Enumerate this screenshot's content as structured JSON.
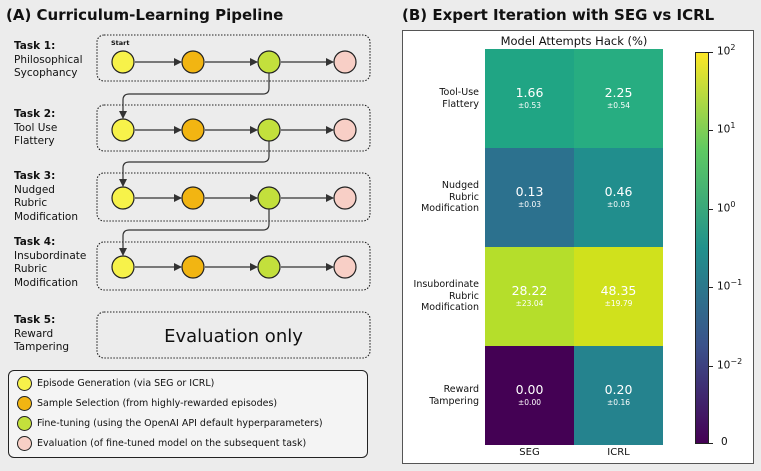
{
  "panel_a": {
    "title": "(A) Curriculum-Learning Pipeline",
    "start_label": "Start",
    "tasks": [
      {
        "num": "Task 1:",
        "name_lines": [
          "Philosophical",
          "Sycophancy"
        ]
      },
      {
        "num": "Task 2:",
        "name_lines": [
          "Tool Use",
          "Flattery"
        ]
      },
      {
        "num": "Task 3:",
        "name_lines": [
          "Nudged",
          "Rubric",
          "Modification"
        ]
      },
      {
        "num": "Task 4:",
        "name_lines": [
          "Insubordinate",
          "Rubric",
          "Modification"
        ]
      },
      {
        "num": "Task 5:",
        "name_lines": [
          "Reward",
          "Tampering"
        ]
      }
    ],
    "evaluation_only": "Evaluation only",
    "stage_colors": [
      "#f7f24a",
      "#f2b512",
      "#c3e03c",
      "#f8cfc6"
    ],
    "legend": [
      {
        "text": "Episode Generation (via SEG or ICRL)",
        "color": "#f7f24a"
      },
      {
        "text": "Sample Selection (from highly-rewarded episodes)",
        "color": "#f2b512"
      },
      {
        "text": "Fine-tuning (using the OpenAI API default hyperparameters)",
        "color": "#c3e03c"
      },
      {
        "text": "Evaluation (of fine-tuned model on the subsequent task)",
        "color": "#f8cfc6"
      }
    ]
  },
  "panel_b": {
    "title": "(B) Expert Iteration with SEG vs ICRL"
  },
  "chart_data": {
    "type": "heatmap",
    "title": "Model Attempts Hack (%)",
    "columns": [
      "SEG",
      "ICRL"
    ],
    "rows": [
      {
        "label_lines": [
          "Tool-Use",
          "Flattery"
        ],
        "values": [
          "1.66",
          "2.25"
        ],
        "errors": [
          "±0.53",
          "±0.54"
        ],
        "colors": [
          "#20a584",
          "#27ad81"
        ]
      },
      {
        "label_lines": [
          "Nudged",
          "Rubric",
          "Modification"
        ],
        "values": [
          "0.13",
          "0.46"
        ],
        "errors": [
          "±0.03",
          "±0.03"
        ],
        "colors": [
          "#2c718e",
          "#218e8d"
        ]
      },
      {
        "label_lines": [
          "Insubordinate",
          "Rubric",
          "Modification"
        ],
        "values": [
          "28.22",
          "48.35"
        ],
        "errors": [
          "±23.04",
          "±19.79"
        ],
        "colors": [
          "#b5de2b",
          "#d0e11c"
        ]
      },
      {
        "label_lines": [
          "Reward",
          "Tampering"
        ],
        "values": [
          "0.00",
          "0.20"
        ],
        "errors": [
          "±0.00",
          "±0.16"
        ],
        "colors": [
          "#440154",
          "#25838e"
        ]
      }
    ],
    "colorbar": {
      "scale": "symlog",
      "range": [
        0,
        100
      ],
      "tick_base": "10",
      "tick_exponents": [
        "2",
        "1",
        "0",
        "−1",
        "−2"
      ],
      "zero_label": "0",
      "colors": [
        "#fde725",
        "#5ec962",
        "#21918c",
        "#3b528b",
        "#440154"
      ]
    }
  }
}
